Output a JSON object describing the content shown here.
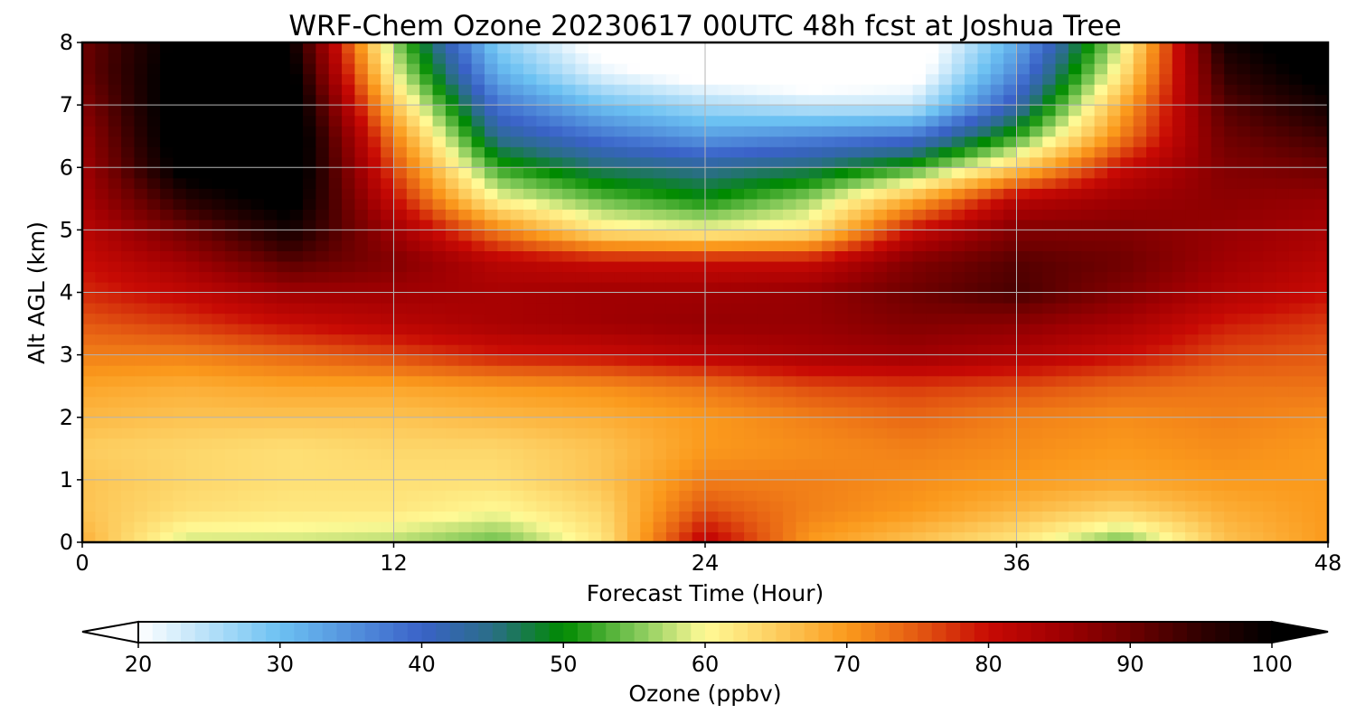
{
  "chart_data": {
    "type": "heatmap",
    "title": "WRF-Chem Ozone  20230617 00UTC 48h fcst at Joshua Tree",
    "xlabel": "Forecast Time (Hour)",
    "ylabel": "Alt AGL (km)",
    "xlim": [
      0,
      48
    ],
    "ylim": [
      0,
      8
    ],
    "x_ticks": [
      "0",
      "12",
      "24",
      "36",
      "48"
    ],
    "y_ticks": [
      "0",
      "1",
      "2",
      "3",
      "4",
      "5",
      "6",
      "7",
      "8"
    ],
    "grid": true,
    "hours": [
      0,
      4,
      8,
      12,
      16,
      20,
      24,
      28,
      32,
      36,
      40,
      44,
      48
    ],
    "altitudes_km": [
      0,
      0.5,
      1,
      1.5,
      2,
      2.5,
      3,
      3.5,
      4,
      4.5,
      5,
      5.5,
      6,
      6.5,
      7,
      7.5,
      8
    ],
    "ozone_ppbv": [
      [
        68,
        58,
        58,
        57,
        54,
        62,
        82,
        70,
        66,
        62,
        54,
        66,
        70
      ],
      [
        66,
        63,
        62,
        62,
        60,
        64,
        76,
        72,
        70,
        67,
        64,
        68,
        70
      ],
      [
        66,
        64,
        63,
        63,
        63,
        66,
        72,
        72,
        71,
        70,
        69,
        70,
        70
      ],
      [
        65,
        64,
        63,
        64,
        64,
        66,
        70,
        71,
        72,
        71,
        70,
        71,
        70
      ],
      [
        67,
        66,
        66,
        66,
        67,
        68,
        70,
        72,
        74,
        72,
        71,
        72,
        71
      ],
      [
        69,
        68,
        69,
        69,
        70,
        71,
        73,
        76,
        77,
        76,
        74,
        73,
        73
      ],
      [
        72,
        72,
        74,
        76,
        79,
        80,
        82,
        84,
        85,
        83,
        80,
        76,
        75
      ],
      [
        75,
        77,
        80,
        82,
        84,
        85,
        86,
        86,
        88,
        87,
        84,
        79,
        77
      ],
      [
        78,
        81,
        85,
        85,
        84,
        85,
        85,
        86,
        90,
        93,
        88,
        83,
        80
      ],
      [
        80,
        85,
        92,
        88,
        82,
        80,
        80,
        80,
        88,
        92,
        90,
        85,
        82
      ],
      [
        82,
        90,
        98,
        85,
        72,
        62,
        60,
        62,
        80,
        88,
        88,
        86,
        84
      ],
      [
        84,
        96,
        102,
        80,
        60,
        54,
        50,
        56,
        68,
        82,
        85,
        87,
        86
      ],
      [
        85,
        102,
        104,
        76,
        52,
        46,
        44,
        46,
        52,
        65,
        80,
        88,
        90
      ],
      [
        86,
        104,
        105,
        72,
        44,
        38,
        34,
        36,
        38,
        52,
        72,
        90,
        94
      ],
      [
        88,
        104,
        104,
        66,
        38,
        30,
        26,
        24,
        24,
        42,
        68,
        92,
        98
      ],
      [
        90,
        103,
        102,
        60,
        32,
        22,
        18,
        16,
        18,
        36,
        62,
        95,
        102
      ],
      [
        90,
        102,
        100,
        56,
        28,
        18,
        14,
        14,
        16,
        32,
        58,
        98,
        104
      ]
    ],
    "colorbar": {
      "label": "Ozone  (ppbv)",
      "range": [
        20,
        100
      ],
      "ticks": [
        "20",
        "30",
        "40",
        "50",
        "60",
        "70",
        "80",
        "90",
        "100"
      ],
      "extend": "both",
      "colors": [
        {
          "v": 20,
          "c": "#ffffff"
        },
        {
          "v": 30,
          "c": "#6cc1f2"
        },
        {
          "v": 40,
          "c": "#3a62c8"
        },
        {
          "v": 45,
          "c": "#2a6e86"
        },
        {
          "v": 50,
          "c": "#008a00"
        },
        {
          "v": 55,
          "c": "#7cc655"
        },
        {
          "v": 60,
          "c": "#fffa96"
        },
        {
          "v": 65,
          "c": "#fdcd5f"
        },
        {
          "v": 70,
          "c": "#fb9a1c"
        },
        {
          "v": 75,
          "c": "#e45a12"
        },
        {
          "v": 80,
          "c": "#c80a04"
        },
        {
          "v": 85,
          "c": "#a00002"
        },
        {
          "v": 90,
          "c": "#6e0000"
        },
        {
          "v": 95,
          "c": "#300000"
        },
        {
          "v": 100,
          "c": "#000000"
        }
      ]
    }
  }
}
